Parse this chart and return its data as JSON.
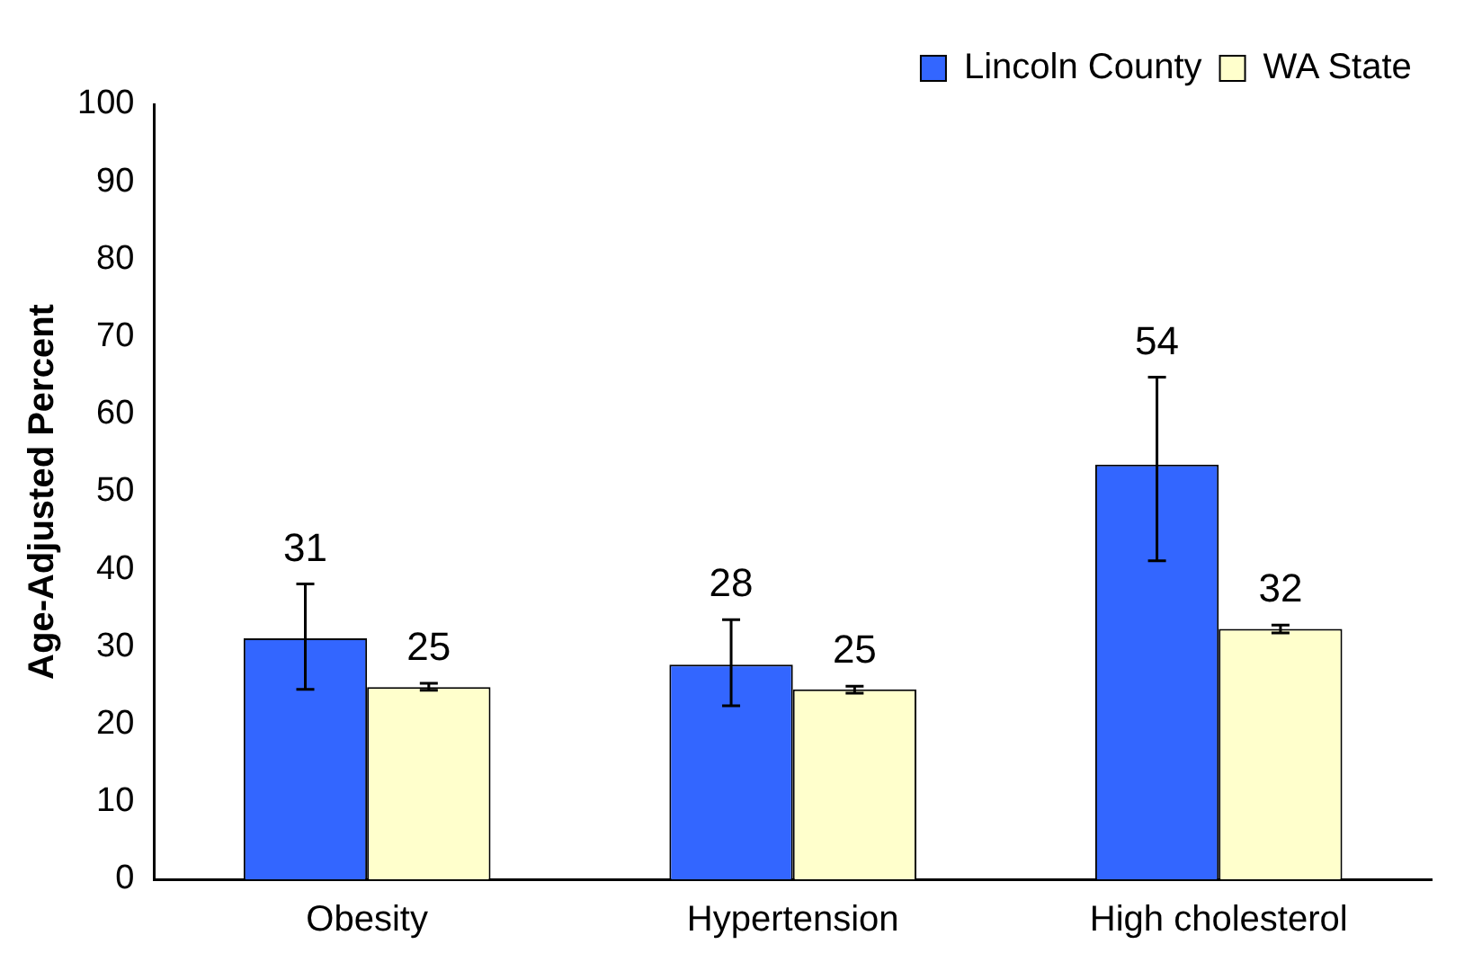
{
  "chart_data": {
    "type": "bar",
    "ylabel": "Age-Adjusted Percent",
    "categories": [
      "Obesity",
      "Hypertension",
      "High cholesterol"
    ],
    "series": [
      {
        "name": "Lincoln County",
        "color": "#3366ff",
        "values": [
          31.1,
          27.7,
          53.5
        ],
        "errors": [
          [
            24.5,
            38.1
          ],
          [
            22.4,
            33.5
          ],
          [
            41.1,
            64.8
          ]
        ],
        "value_labels": [
          "31",
          "28",
          "54"
        ]
      },
      {
        "name": "WA State",
        "color": "#ffffcc",
        "values": [
          24.8,
          24.5,
          32.3
        ],
        "errors": [
          [
            24.4,
            25.3
          ],
          [
            24.0,
            24.9
          ],
          [
            31.8,
            32.8
          ]
        ],
        "value_labels": [
          "25",
          "25",
          "32"
        ]
      }
    ],
    "ylim": [
      0,
      100
    ],
    "yticks": [
      0,
      10,
      20,
      30,
      40,
      50,
      60,
      70,
      80,
      90,
      100
    ],
    "grid": false,
    "legend": "top right"
  }
}
